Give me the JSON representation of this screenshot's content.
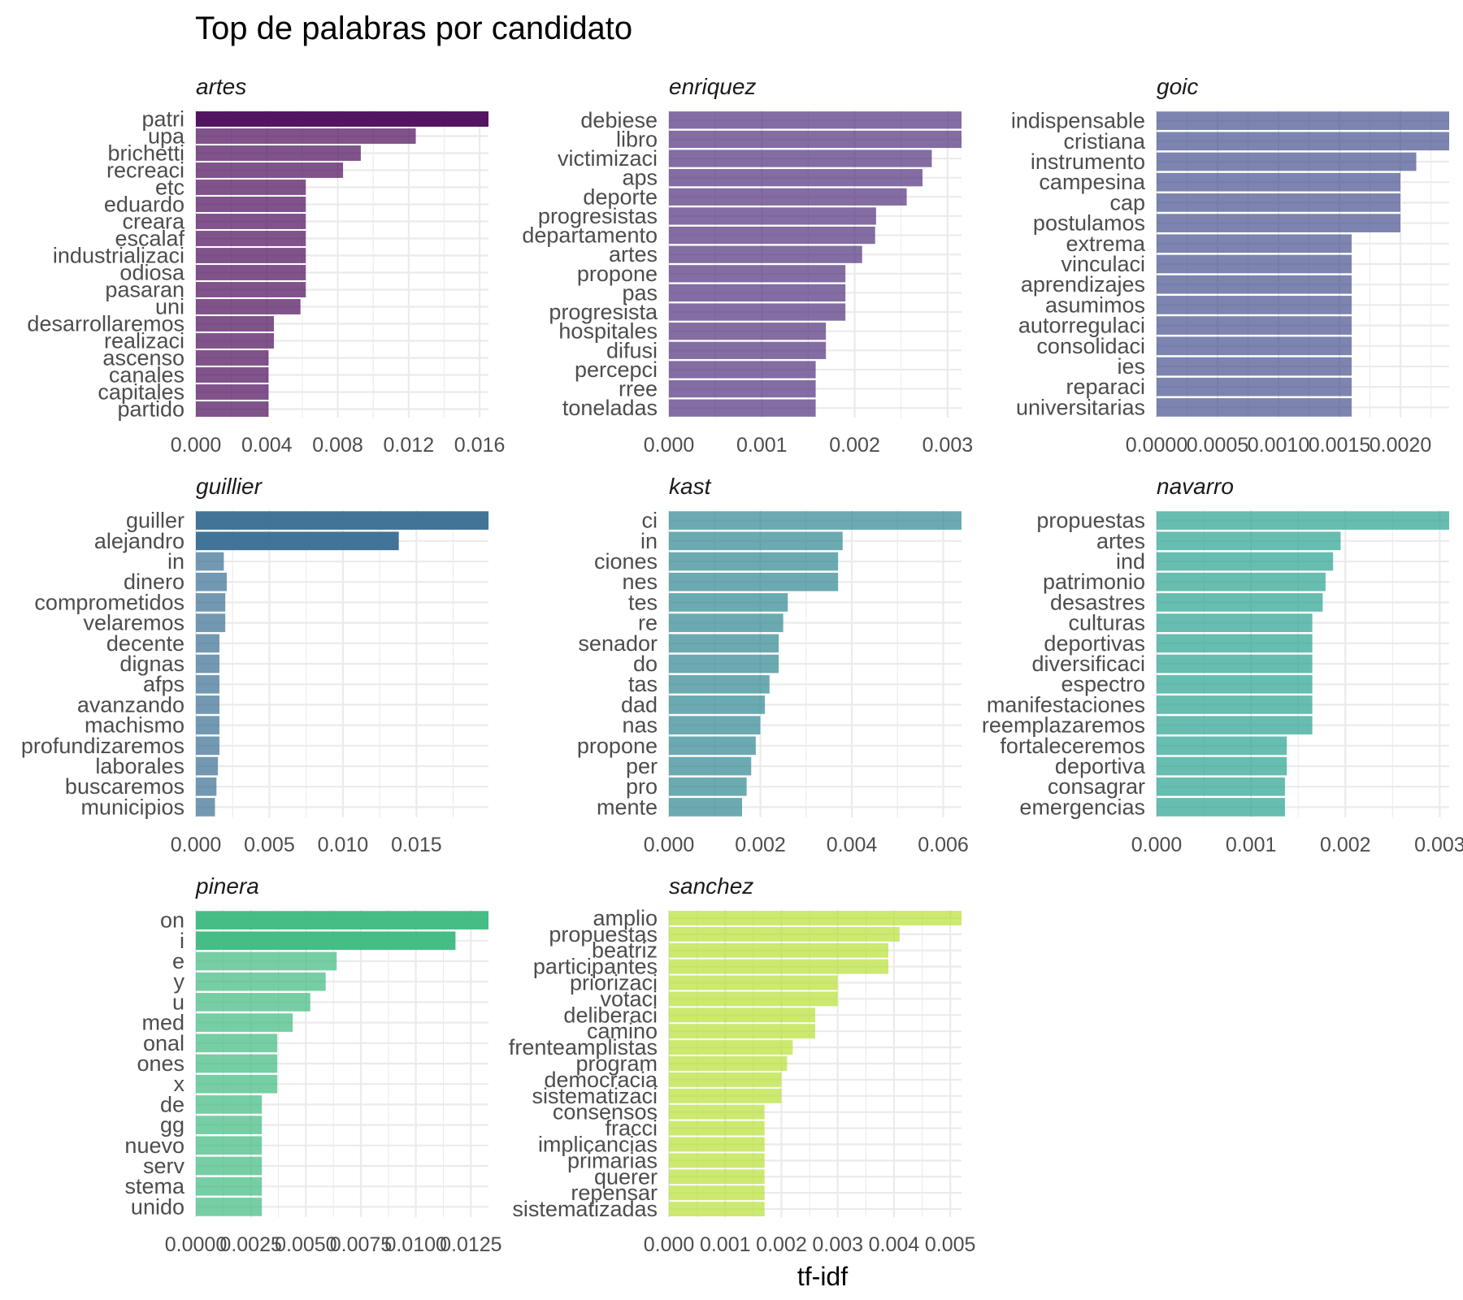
{
  "chart_data": {
    "type": "bar",
    "orientation": "horizontal",
    "title": "Top de palabras por candidato",
    "xlabel": "tf-idf",
    "ylabel": "",
    "grid": true,
    "legend": "none",
    "layout": "facet grid, 3 columns, free scales",
    "panels": [
      {
        "name": "artes",
        "color": "#440154",
        "categories": [
          "patri",
          "upa",
          "brichetti",
          "recreaci",
          "etc",
          "eduardo",
          "creara",
          "escalaf",
          "industrializaci",
          "odiosa",
          "pasaran",
          "uni",
          "desarrollaremos",
          "realizaci",
          "ascenso",
          "canales",
          "capitales",
          "partido"
        ],
        "values": [
          0.0165,
          0.0124,
          0.0093,
          0.0083,
          0.0062,
          0.0062,
          0.0062,
          0.0062,
          0.0062,
          0.0062,
          0.0062,
          0.0059,
          0.0044,
          0.0044,
          0.0041,
          0.0041,
          0.0041,
          0.0041
        ],
        "xlim": [
          0,
          0.0165
        ],
        "xticks": [
          0,
          0.004,
          0.008,
          0.012,
          0.016
        ],
        "xtick_labels": [
          "0.000",
          "0.004",
          "0.008",
          "0.012",
          "0.016"
        ]
      },
      {
        "name": "enriquez",
        "color": "#482878",
        "categories": [
          "debiese",
          "libro",
          "victimizaci",
          "aps",
          "deporte",
          "progresistas",
          "departamento",
          "artes",
          "propone",
          "pas",
          "progresista",
          "hospitales",
          "difusi",
          "percepci",
          "rree",
          "toneladas"
        ],
        "values": [
          0.00315,
          0.00315,
          0.00283,
          0.00273,
          0.00256,
          0.00223,
          0.00222,
          0.00208,
          0.0019,
          0.0019,
          0.0019,
          0.00169,
          0.00169,
          0.00158,
          0.00158,
          0.00158
        ],
        "xlim": [
          0,
          0.00315
        ],
        "xticks": [
          0,
          0.001,
          0.002,
          0.003
        ],
        "xtick_labels": [
          "0.000",
          "0.001",
          "0.002",
          "0.003"
        ]
      },
      {
        "name": "goic",
        "color": "#3E4A89",
        "categories": [
          "indispensable",
          "cristiana",
          "instrumento",
          "campesina",
          "cap",
          "postulamos",
          "extrema",
          "vinculaci",
          "aprendizajes",
          "asumimos",
          "autorregulaci",
          "consolidaci",
          "ies",
          "reparaci",
          "universitarias"
        ],
        "values": [
          0.0024,
          0.0024,
          0.00213,
          0.002,
          0.002,
          0.002,
          0.0016,
          0.0016,
          0.0016,
          0.0016,
          0.0016,
          0.0016,
          0.0016,
          0.0016,
          0.0016
        ],
        "xlim": [
          0,
          0.0024
        ],
        "xticks": [
          0,
          0.0005,
          0.001,
          0.0015,
          0.002
        ],
        "xtick_labels": [
          "0.0000",
          "0.0005",
          "0.0010",
          "0.0015",
          "0.0020"
        ]
      },
      {
        "name": "guillier",
        "color": "#31688E",
        "categories": [
          "guiller",
          "alejandro",
          "in",
          "dinero",
          "comprometidos",
          "velaremos",
          "decente",
          "dignas",
          "afps",
          "avanzando",
          "machismo",
          "profundizaremos",
          "laborales",
          "buscaremos",
          "municipios"
        ],
        "values": [
          0.0199,
          0.0138,
          0.0019,
          0.0021,
          0.002,
          0.002,
          0.0016,
          0.0016,
          0.0016,
          0.0016,
          0.0016,
          0.0016,
          0.0015,
          0.0014,
          0.0013
        ],
        "xlim": [
          0,
          0.0199
        ],
        "xticks": [
          0,
          0.005,
          0.01,
          0.015
        ],
        "xtick_labels": [
          "0.000",
          "0.005",
          "0.010",
          "0.015"
        ]
      },
      {
        "name": "kast",
        "color": "#26828E",
        "categories": [
          "ci",
          "in",
          "ciones",
          "nes",
          "tes",
          "re",
          "senador",
          "do",
          "tas",
          "dad",
          "nas",
          "propone",
          "per",
          "pro",
          "mente"
        ],
        "values": [
          0.0064,
          0.0038,
          0.0037,
          0.0037,
          0.0026,
          0.0025,
          0.0024,
          0.0024,
          0.0022,
          0.0021,
          0.002,
          0.0019,
          0.0018,
          0.0017,
          0.0016
        ],
        "xlim": [
          0,
          0.0064
        ],
        "xticks": [
          0,
          0.002,
          0.004,
          0.006
        ],
        "xtick_labels": [
          "0.000",
          "0.002",
          "0.004",
          "0.006"
        ]
      },
      {
        "name": "navarro",
        "color": "#1F9E89",
        "categories": [
          "propuestas",
          "artes",
          "ind",
          "patrimonio",
          "desastres",
          "culturas",
          "deportivas",
          "diversificaci",
          "espectro",
          "manifestaciones",
          "reemplazaremos",
          "fortaleceremos",
          "deportiva",
          "consagrar",
          "emergencias"
        ],
        "values": [
          0.0031,
          0.00195,
          0.00187,
          0.00179,
          0.00176,
          0.00165,
          0.00165,
          0.00165,
          0.00165,
          0.00165,
          0.00165,
          0.00138,
          0.00138,
          0.00136,
          0.00136
        ],
        "xlim": [
          0,
          0.0031
        ],
        "xticks": [
          0,
          0.001,
          0.002,
          0.003
        ],
        "xtick_labels": [
          "0.000",
          "0.001",
          "0.002",
          "0.003"
        ]
      },
      {
        "name": "pinera",
        "color": "#35B779",
        "categories": [
          "on",
          "i",
          "e",
          "y",
          "u",
          "med",
          "onal",
          "ones",
          "x",
          "de",
          "gg",
          "nuevo",
          "serv",
          "stema",
          "unido"
        ],
        "values": [
          0.0133,
          0.0118,
          0.0064,
          0.0059,
          0.0052,
          0.0044,
          0.0037,
          0.0037,
          0.0037,
          0.003,
          0.003,
          0.003,
          0.003,
          0.003,
          0.003
        ],
        "xlim": [
          0,
          0.0133
        ],
        "xticks": [
          0,
          0.0025,
          0.005,
          0.0075,
          0.01,
          0.0125
        ],
        "xtick_labels": [
          "0.0000",
          "0.0025",
          "0.0050",
          "0.0075",
          "0.0100",
          "0.0125"
        ]
      },
      {
        "name": "sanchez",
        "color": "#B4DE2C",
        "categories": [
          "amplio",
          "propuestas",
          "beatriz",
          "participantes",
          "priorizaci",
          "votaci",
          "deliberaci",
          "camino",
          "frenteamplistas",
          "program",
          "democracia",
          "sistematizaci",
          "consensos",
          "fracci",
          "implicancias",
          "primarias",
          "querer",
          "repensar",
          "sistematizadas"
        ],
        "values": [
          0.0052,
          0.0041,
          0.0039,
          0.0039,
          0.003,
          0.003,
          0.0026,
          0.0026,
          0.0022,
          0.0021,
          0.002,
          0.002,
          0.0017,
          0.0017,
          0.0017,
          0.0017,
          0.0017,
          0.0017,
          0.0017
        ],
        "xlim": [
          0,
          0.0052
        ],
        "xticks": [
          0,
          0.001,
          0.002,
          0.003,
          0.004,
          0.005
        ],
        "xtick_labels": [
          "0.000",
          "0.001",
          "0.002",
          "0.003",
          "0.004",
          "0.005"
        ]
      }
    ]
  }
}
